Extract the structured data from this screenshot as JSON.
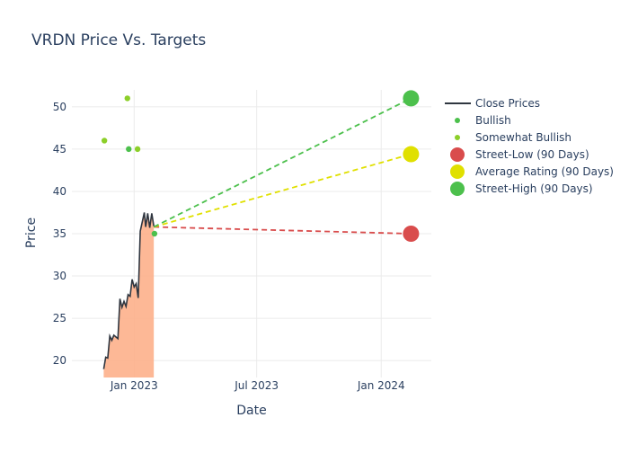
{
  "chart_data": {
    "type": "line",
    "title": "VRDN Price Vs. Targets",
    "xlabel": "Date",
    "ylabel": "Price",
    "x_range": [
      "2022-10-01",
      "2024-03-15"
    ],
    "ylim": [
      18,
      52
    ],
    "x_ticks": [
      {
        "date": "2023-01-01",
        "label": "Jan 2023"
      },
      {
        "date": "2023-07-01",
        "label": "Jul 2023"
      },
      {
        "date": "2024-01-01",
        "label": "Jan 2024"
      }
    ],
    "y_ticks": [
      20,
      25,
      30,
      35,
      40,
      45,
      50
    ],
    "grid": true,
    "legend_position": "right",
    "colors": {
      "close": "#2f3640",
      "area_fill": "#fdb08b",
      "bullish": "#4cc04c",
      "somewhat_bullish": "#8ccf29",
      "street_low": "#d94c4c",
      "average": "#e0e000",
      "street_high": "#4cc04c",
      "grid": "#ebebeb",
      "text": "#2a3f5f"
    },
    "series": [
      {
        "name": "Close Prices",
        "kind": "line",
        "points": [
          [
            "2022-11-17",
            19.0
          ],
          [
            "2022-11-20",
            20.4
          ],
          [
            "2022-11-23",
            20.3
          ],
          [
            "2022-11-26",
            22.9
          ],
          [
            "2022-11-29",
            22.4
          ],
          [
            "2022-12-02",
            23.0
          ],
          [
            "2022-12-05",
            22.8
          ],
          [
            "2022-12-08",
            22.6
          ],
          [
            "2022-12-11",
            27.3
          ],
          [
            "2022-12-14",
            26.3
          ],
          [
            "2022-12-17",
            27.0
          ],
          [
            "2022-12-20",
            26.4
          ],
          [
            "2022-12-23",
            27.8
          ],
          [
            "2022-12-26",
            27.6
          ],
          [
            "2022-12-29",
            29.6
          ],
          [
            "2023-01-01",
            28.7
          ],
          [
            "2023-01-04",
            29.1
          ],
          [
            "2023-01-07",
            27.4
          ],
          [
            "2023-01-10",
            35.3
          ],
          [
            "2023-01-13",
            36.4
          ],
          [
            "2023-01-16",
            37.5
          ],
          [
            "2023-01-18",
            35.8
          ],
          [
            "2023-01-21",
            37.4
          ],
          [
            "2023-01-24",
            35.7
          ],
          [
            "2023-01-27",
            37.4
          ],
          [
            "2023-01-30",
            35.9
          ]
        ]
      },
      {
        "name": "Bullish",
        "kind": "markers",
        "points": [
          [
            "2022-12-24",
            45.0
          ],
          [
            "2023-01-31",
            35.0
          ]
        ]
      },
      {
        "name": "Somewhat Bullish",
        "kind": "markers",
        "points": [
          [
            "2022-11-18",
            46.0
          ],
          [
            "2022-12-22",
            51.0
          ],
          [
            "2023-01-06",
            45.0
          ]
        ]
      },
      {
        "name": "Street-Low (90 Days)",
        "kind": "target",
        "from": [
          "2023-01-30",
          35.8
        ],
        "to": [
          "2024-02-14",
          35.0
        ]
      },
      {
        "name": "Average Rating (90 Days)",
        "kind": "target",
        "from": [
          "2023-01-30",
          35.8
        ],
        "to": [
          "2024-02-14",
          44.4
        ]
      },
      {
        "name": "Street-High (90 Days)",
        "kind": "target",
        "from": [
          "2023-01-30",
          35.8
        ],
        "to": [
          "2024-02-14",
          51.0
        ]
      }
    ]
  }
}
